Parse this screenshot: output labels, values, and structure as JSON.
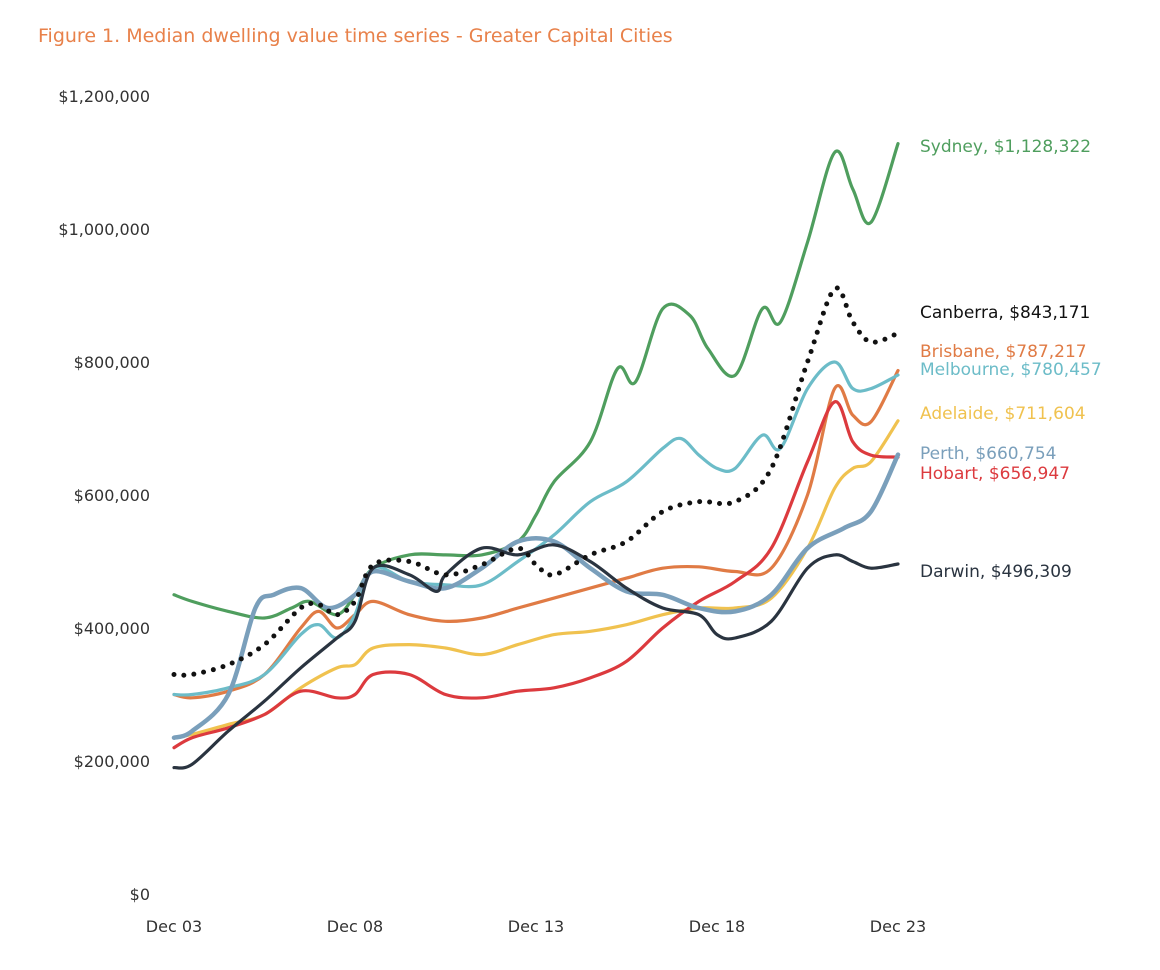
{
  "chart_data": {
    "type": "line",
    "title": "Figure 1. Median dwelling value time series - Greater Capital Cities",
    "title_color": "#e8814a",
    "xlabel": "",
    "ylabel": "",
    "x_range": [
      "2003-12",
      "2023-12"
    ],
    "ylim": [
      0,
      1200000
    ],
    "y_ticks": [
      {
        "value": 0,
        "label": "$0"
      },
      {
        "value": 200000,
        "label": "$200,000"
      },
      {
        "value": 400000,
        "label": "$400,000"
      },
      {
        "value": 600000,
        "label": "$600,000"
      },
      {
        "value": 800000,
        "label": "$800,000"
      },
      {
        "value": 1000000,
        "label": "$1,000,000"
      },
      {
        "value": 1200000,
        "label": "$1,200,000"
      }
    ],
    "x_ticks": [
      {
        "value": "2003-12",
        "label": "Dec 03"
      },
      {
        "value": "2008-12",
        "label": "Dec 08"
      },
      {
        "value": "2013-12",
        "label": "Dec 13"
      },
      {
        "value": "2018-12",
        "label": "Dec 18"
      },
      {
        "value": "2023-12",
        "label": "Dec 23"
      }
    ],
    "grid": false,
    "legend": "end-labels",
    "series": [
      {
        "name": "Sydney",
        "label": "Sydney, $1,128,322",
        "color": "#4f9e5e",
        "style": "solid",
        "points": [
          [
            "2003-12",
            450000
          ],
          [
            "2004-06",
            440000
          ],
          [
            "2005-06",
            425000
          ],
          [
            "2006-06",
            415000
          ],
          [
            "2007-03",
            430000
          ],
          [
            "2007-09",
            440000
          ],
          [
            "2008-06",
            420000
          ],
          [
            "2008-12",
            450000
          ],
          [
            "2009-06",
            490000
          ],
          [
            "2010-06",
            510000
          ],
          [
            "2011-06",
            510000
          ],
          [
            "2012-06",
            510000
          ],
          [
            "2013-06",
            530000
          ],
          [
            "2013-12",
            570000
          ],
          [
            "2014-06",
            620000
          ],
          [
            "2015-06",
            680000
          ],
          [
            "2016-03",
            790000
          ],
          [
            "2016-09",
            770000
          ],
          [
            "2017-06",
            880000
          ],
          [
            "2018-03",
            870000
          ],
          [
            "2018-09",
            820000
          ],
          [
            "2019-06",
            780000
          ],
          [
            "2020-03",
            880000
          ],
          [
            "2020-09",
            860000
          ],
          [
            "2021-06",
            980000
          ],
          [
            "2022-03",
            1115000
          ],
          [
            "2022-09",
            1060000
          ],
          [
            "2023-03",
            1010000
          ],
          [
            "2023-12",
            1128322
          ]
        ]
      },
      {
        "name": "Canberra",
        "label": "Canberra, $843,171",
        "color": "#111111",
        "style": "dotted",
        "points": [
          [
            "2003-12",
            330000
          ],
          [
            "2004-06",
            330000
          ],
          [
            "2005-06",
            345000
          ],
          [
            "2006-06",
            375000
          ],
          [
            "2007-06",
            430000
          ],
          [
            "2007-12",
            435000
          ],
          [
            "2008-06",
            420000
          ],
          [
            "2008-12",
            440000
          ],
          [
            "2009-06",
            495000
          ],
          [
            "2010-06",
            500000
          ],
          [
            "2011-06",
            480000
          ],
          [
            "2012-06",
            495000
          ],
          [
            "2013-06",
            520000
          ],
          [
            "2013-12",
            495000
          ],
          [
            "2014-06",
            480000
          ],
          [
            "2015-06",
            510000
          ],
          [
            "2016-06",
            530000
          ],
          [
            "2017-06",
            575000
          ],
          [
            "2018-06",
            590000
          ],
          [
            "2019-06",
            590000
          ],
          [
            "2020-06",
            640000
          ],
          [
            "2021-06",
            800000
          ],
          [
            "2022-03",
            910000
          ],
          [
            "2022-09",
            860000
          ],
          [
            "2023-03",
            830000
          ],
          [
            "2023-12",
            843171
          ]
        ]
      },
      {
        "name": "Brisbane",
        "label": "Brisbane, $787,217",
        "color": "#e07b45",
        "style": "solid",
        "points": [
          [
            "2003-12",
            300000
          ],
          [
            "2004-06",
            295000
          ],
          [
            "2005-06",
            305000
          ],
          [
            "2006-06",
            330000
          ],
          [
            "2007-06",
            400000
          ],
          [
            "2007-12",
            425000
          ],
          [
            "2008-06",
            400000
          ],
          [
            "2008-12",
            420000
          ],
          [
            "2009-06",
            440000
          ],
          [
            "2010-06",
            420000
          ],
          [
            "2011-06",
            410000
          ],
          [
            "2012-06",
            415000
          ],
          [
            "2013-06",
            430000
          ],
          [
            "2014-06",
            445000
          ],
          [
            "2015-06",
            460000
          ],
          [
            "2016-06",
            475000
          ],
          [
            "2017-06",
            490000
          ],
          [
            "2018-06",
            492000
          ],
          [
            "2019-06",
            485000
          ],
          [
            "2020-06",
            490000
          ],
          [
            "2021-06",
            600000
          ],
          [
            "2022-03",
            760000
          ],
          [
            "2022-09",
            720000
          ],
          [
            "2023-03",
            710000
          ],
          [
            "2023-12",
            787217
          ]
        ]
      },
      {
        "name": "Melbourne",
        "label": "Melbourne, $780,457",
        "color": "#6cbcc8",
        "style": "solid",
        "points": [
          [
            "2003-12",
            300000
          ],
          [
            "2004-06",
            300000
          ],
          [
            "2005-06",
            310000
          ],
          [
            "2006-06",
            330000
          ],
          [
            "2007-06",
            390000
          ],
          [
            "2007-12",
            405000
          ],
          [
            "2008-06",
            385000
          ],
          [
            "2008-12",
            420000
          ],
          [
            "2009-06",
            490000
          ],
          [
            "2010-06",
            470000
          ],
          [
            "2011-06",
            465000
          ],
          [
            "2012-06",
            465000
          ],
          [
            "2013-06",
            500000
          ],
          [
            "2014-06",
            540000
          ],
          [
            "2015-06",
            590000
          ],
          [
            "2016-06",
            620000
          ],
          [
            "2017-06",
            670000
          ],
          [
            "2017-12",
            685000
          ],
          [
            "2018-06",
            660000
          ],
          [
            "2018-12",
            640000
          ],
          [
            "2019-06",
            640000
          ],
          [
            "2020-03",
            690000
          ],
          [
            "2020-09",
            670000
          ],
          [
            "2021-06",
            760000
          ],
          [
            "2022-03",
            800000
          ],
          [
            "2022-09",
            760000
          ],
          [
            "2023-03",
            760000
          ],
          [
            "2023-12",
            780457
          ]
        ]
      },
      {
        "name": "Adelaide",
        "label": "Adelaide, $711,604",
        "color": "#f0c24f",
        "style": "solid",
        "points": [
          [
            "2003-12",
            235000
          ],
          [
            "2004-06",
            240000
          ],
          [
            "2005-06",
            255000
          ],
          [
            "2006-06",
            270000
          ],
          [
            "2007-06",
            310000
          ],
          [
            "2008-06",
            340000
          ],
          [
            "2008-12",
            345000
          ],
          [
            "2009-06",
            370000
          ],
          [
            "2010-06",
            375000
          ],
          [
            "2011-06",
            370000
          ],
          [
            "2012-06",
            360000
          ],
          [
            "2013-06",
            375000
          ],
          [
            "2014-06",
            390000
          ],
          [
            "2015-06",
            395000
          ],
          [
            "2016-06",
            405000
          ],
          [
            "2017-06",
            420000
          ],
          [
            "2018-06",
            430000
          ],
          [
            "2019-06",
            430000
          ],
          [
            "2020-06",
            445000
          ],
          [
            "2021-06",
            520000
          ],
          [
            "2022-03",
            610000
          ],
          [
            "2022-09",
            640000
          ],
          [
            "2023-03",
            650000
          ],
          [
            "2023-12",
            711604
          ]
        ]
      },
      {
        "name": "Perth",
        "label": "Perth, $660,754",
        "color": "#7a9fbb",
        "style": "solid",
        "points": [
          [
            "2003-12",
            235000
          ],
          [
            "2004-06",
            245000
          ],
          [
            "2005-06",
            300000
          ],
          [
            "2006-03",
            430000
          ],
          [
            "2006-09",
            450000
          ],
          [
            "2007-06",
            460000
          ],
          [
            "2008-03",
            430000
          ],
          [
            "2008-12",
            450000
          ],
          [
            "2009-06",
            485000
          ],
          [
            "2010-06",
            470000
          ],
          [
            "2011-06",
            460000
          ],
          [
            "2012-06",
            490000
          ],
          [
            "2013-06",
            530000
          ],
          [
            "2014-06",
            530000
          ],
          [
            "2015-06",
            490000
          ],
          [
            "2016-06",
            455000
          ],
          [
            "2017-06",
            450000
          ],
          [
            "2018-06",
            430000
          ],
          [
            "2019-06",
            425000
          ],
          [
            "2020-06",
            450000
          ],
          [
            "2021-06",
            520000
          ],
          [
            "2022-06",
            550000
          ],
          [
            "2023-03",
            575000
          ],
          [
            "2023-12",
            660754
          ]
        ]
      },
      {
        "name": "Hobart",
        "label": "Hobart, $656,947",
        "color": "#dc3a3e",
        "style": "solid",
        "points": [
          [
            "2003-12",
            220000
          ],
          [
            "2004-06",
            235000
          ],
          [
            "2005-06",
            250000
          ],
          [
            "2006-06",
            270000
          ],
          [
            "2007-06",
            305000
          ],
          [
            "2008-06",
            295000
          ],
          [
            "2008-12",
            300000
          ],
          [
            "2009-06",
            330000
          ],
          [
            "2010-06",
            330000
          ],
          [
            "2011-06",
            300000
          ],
          [
            "2012-06",
            295000
          ],
          [
            "2013-06",
            305000
          ],
          [
            "2014-06",
            310000
          ],
          [
            "2015-06",
            325000
          ],
          [
            "2016-06",
            350000
          ],
          [
            "2017-06",
            400000
          ],
          [
            "2018-06",
            440000
          ],
          [
            "2019-06",
            470000
          ],
          [
            "2020-06",
            520000
          ],
          [
            "2021-06",
            650000
          ],
          [
            "2022-03",
            740000
          ],
          [
            "2022-09",
            680000
          ],
          [
            "2023-03",
            660000
          ],
          [
            "2023-12",
            656947
          ]
        ]
      },
      {
        "name": "Darwin",
        "label": "Darwin, $496,309",
        "color": "#2a3440",
        "style": "solid",
        "points": [
          [
            "2003-12",
            190000
          ],
          [
            "2004-06",
            195000
          ],
          [
            "2005-06",
            245000
          ],
          [
            "2006-06",
            290000
          ],
          [
            "2007-06",
            340000
          ],
          [
            "2008-06",
            385000
          ],
          [
            "2008-12",
            410000
          ],
          [
            "2009-06",
            490000
          ],
          [
            "2010-06",
            480000
          ],
          [
            "2011-03",
            455000
          ],
          [
            "2011-06",
            480000
          ],
          [
            "2012-06",
            520000
          ],
          [
            "2013-06",
            510000
          ],
          [
            "2014-06",
            525000
          ],
          [
            "2015-06",
            500000
          ],
          [
            "2016-06",
            460000
          ],
          [
            "2017-06",
            430000
          ],
          [
            "2018-06",
            420000
          ],
          [
            "2018-12",
            390000
          ],
          [
            "2019-06",
            385000
          ],
          [
            "2020-06",
            410000
          ],
          [
            "2021-06",
            490000
          ],
          [
            "2022-03",
            510000
          ],
          [
            "2022-09",
            500000
          ],
          [
            "2023-03",
            490000
          ],
          [
            "2023-12",
            496309
          ]
        ]
      }
    ]
  }
}
